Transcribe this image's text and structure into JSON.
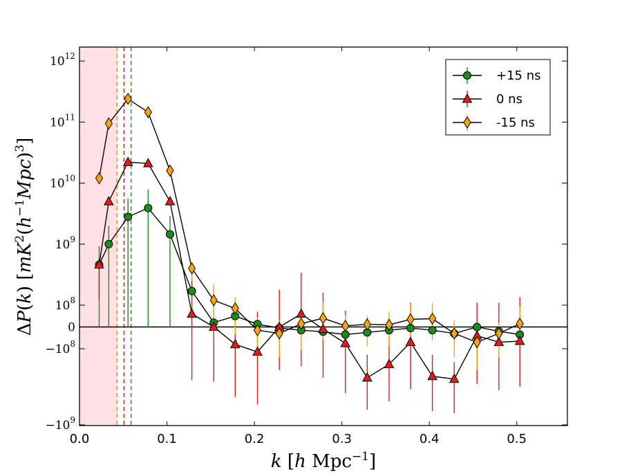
{
  "chart_data": {
    "type": "line",
    "xlabel": "k [h Mpc⁻¹]",
    "ylabel": "ΔP(k) [mK²(h⁻¹Mpc)³]",
    "xlim": [
      0.0,
      0.55
    ],
    "yscale": "symlog",
    "linthresh": 100000000.0,
    "ylim": [
      -1100000000.0,
      1000000000000.0
    ],
    "x_ticks": [
      "0.0",
      "0.1",
      "0.2",
      "0.3",
      "0.4",
      "0.5"
    ],
    "y_ticks": [
      {
        "value": 1000000000000.0,
        "base": "10",
        "exp": "12"
      },
      {
        "value": 100000000000.0,
        "base": "10",
        "exp": "11"
      },
      {
        "value": 10000000000.0,
        "base": "10",
        "exp": "10"
      },
      {
        "value": 1000000000.0,
        "base": "10",
        "exp": "9"
      },
      {
        "value": 100000000.0,
        "base": "10",
        "exp": "8"
      },
      {
        "value": 0,
        "base": "0",
        "exp": ""
      },
      {
        "value": -100000000.0,
        "base": "−10",
        "exp": "8"
      },
      {
        "value": -1000000000.0,
        "base": "−10",
        "exp": "9"
      }
    ],
    "shaded_region": {
      "x_start": 0.0,
      "x_end": 0.043,
      "color": "#ffe0e4"
    },
    "vertical_lines": [
      {
        "x": 0.043,
        "color": "#ff8c00"
      },
      {
        "x": 0.051,
        "color": "#e31a1c"
      },
      {
        "x": 0.059,
        "color": "#2ca02c"
      }
    ],
    "x": [
      0.0225,
      0.0335,
      0.0555,
      0.0785,
      0.1035,
      0.1285,
      0.1535,
      0.178,
      0.2035,
      0.2285,
      0.2535,
      0.2785,
      0.304,
      0.329,
      0.354,
      0.3785,
      0.4035,
      0.4285,
      0.4545,
      0.4795,
      0.5035
    ],
    "series": [
      {
        "name": "+15 ns",
        "color": "#1a8c1a",
        "marker": "circle",
        "values": [
          460000000.0,
          1000000000.0,
          2800000000.0,
          3900000000.0,
          1450000000.0,
          170000000.0,
          20000000.0,
          50000000.0,
          13000000.0,
          -5000000.0,
          -15000000.0,
          -22000000.0,
          -35000000.0,
          -25000000.0,
          -15000000.0,
          -5000000.0,
          -15000000.0,
          -30000000.0,
          0,
          -20000000.0,
          -35000000.0
        ],
        "err_low": [
          460000000.0,
          1000000000.0,
          2800000000.0,
          3900000000.0,
          1450000000.0,
          170000000.0,
          5000000.0,
          5000000.0,
          5000000.0,
          5000000.0,
          5000000.0,
          5000000.0,
          5000000.0,
          5000000.0,
          5000000.0,
          5000000.0,
          5000000.0,
          5000000.0,
          5000000.0,
          5000000.0,
          5000000.0
        ],
        "err_high": [
          460000000.0,
          1000000000.0,
          2800000000.0,
          3900000000.0,
          1450000000.0,
          170000000.0,
          5000000.0,
          5000000.0,
          5000000.0,
          5000000.0,
          5000000.0,
          5000000.0,
          5000000.0,
          5000000.0,
          5000000.0,
          5000000.0,
          5000000.0,
          5000000.0,
          5000000.0,
          5000000.0,
          5000000.0
        ]
      },
      {
        "name": "0 ns",
        "color": "#e31a1c",
        "marker": "triangle",
        "values": [
          460000000.0,
          5000000000.0,
          22000000000.0,
          21000000000.0,
          5000000000.0,
          60000000.0,
          0,
          -80000000.0,
          -110000000.0,
          0,
          60000000.0,
          -10000000.0,
          -75000000.0,
          -240000000.0,
          -160000000.0,
          -70000000.0,
          -230000000.0,
          -250000000.0,
          -40000000.0,
          -70000000.0,
          -65000000.0
        ],
        "err_low": [
          330000000.0,
          100000000.0,
          100000000.0,
          100000000.0,
          100000000.0,
          320000000.0,
          270000000.0,
          350000000.0,
          430000000.0,
          190000000.0,
          230000000.0,
          230000000.0,
          310000000.0,
          390000000.0,
          330000000.0,
          270000000.0,
          430000000.0,
          450000000.0,
          250000000.0,
          280000000.0,
          250000000.0
        ],
        "err_high": [
          100000000.0,
          100000000.0,
          100000000.0,
          100000000.0,
          100000000.0,
          220000000.0,
          180000000.0,
          180000000.0,
          180000000.0,
          180000000.0,
          280000000.0,
          170000000.0,
          150000000.0,
          120000000.0,
          120000000.0,
          180000000.0,
          110000000.0,
          100000000.0,
          150000000.0,
          180000000.0,
          200000000.0
        ]
      },
      {
        "name": "-15 ns",
        "color": "#ffa500",
        "marker": "diamond",
        "values": [
          12000000000.0,
          95000000000.0,
          240000000000.0,
          145000000000.0,
          16000000000.0,
          400000000.0,
          120000000.0,
          85000000.0,
          -15000000.0,
          -30000000.0,
          15000000.0,
          40000000.0,
          5000000.0,
          12000000.0,
          10000000.0,
          35000000.0,
          38000000.0,
          -30000000.0,
          -70000000.0,
          -30000000.0,
          15000000.0
        ],
        "err_low": [
          10000000.0,
          10000000.0,
          10000000.0,
          10000000.0,
          10000000.0,
          150000000.0,
          130000000.0,
          120000000.0,
          100000000.0,
          100000000.0,
          120000000.0,
          100000000.0,
          100000000.0,
          100000000.0,
          100000000.0,
          100000000.0,
          100000000.0,
          100000000.0,
          120000000.0,
          100000000.0,
          100000000.0
        ],
        "err_high": [
          10000000.0,
          10000000.0,
          10000000.0,
          10000000.0,
          10000000.0,
          100000000.0,
          100000000.0,
          50000000.0,
          60000000.0,
          60000000.0,
          70000000.0,
          70000000.0,
          50000000.0,
          40000000.0,
          60000000.0,
          70000000.0,
          70000000.0,
          60000000.0,
          60000000.0,
          50000000.0,
          80000000.0
        ]
      }
    ],
    "legend": {
      "position": "top-right"
    }
  }
}
